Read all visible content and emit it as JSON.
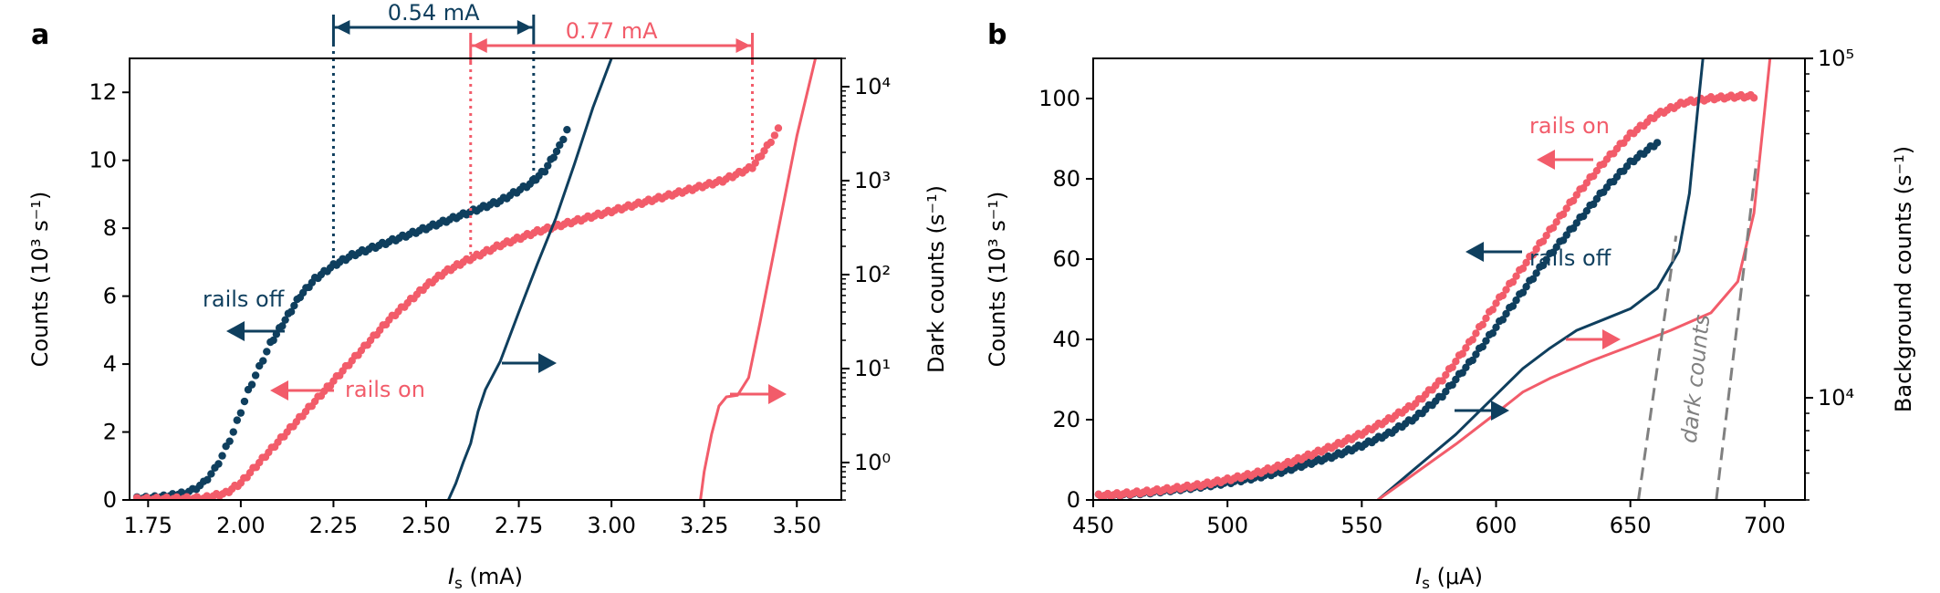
{
  "figure": {
    "panel_a_label": "a",
    "panel_b_label": "b"
  },
  "colors": {
    "rails_off": "#0f3f5e",
    "rails_on": "#f25c6a",
    "dark_counts": "#808080",
    "axis": "#000000"
  },
  "chart_data": [
    {
      "panel": "a",
      "type": "scatter+line",
      "title": "",
      "xlabel_italic": "I",
      "xlabel_sub": "s",
      "xlabel_unit": " (mA)",
      "ylabel_left": "Counts (10³ s⁻¹)",
      "ylabel_right": "Dark counts (s⁻¹)",
      "xlim": [
        1.7,
        3.62
      ],
      "ylim_left": [
        0,
        13
      ],
      "ylim_right_log": [
        0.4,
        20000
      ],
      "x_ticks": [
        1.75,
        2.0,
        2.25,
        2.5,
        2.75,
        3.0,
        3.25,
        3.5
      ],
      "x_tick_labels": [
        "1.75",
        "2.00",
        "2.25",
        "2.50",
        "2.75",
        "3.00",
        "3.25",
        "3.50"
      ],
      "y_ticks_left": [
        0,
        2,
        4,
        6,
        8,
        10,
        12
      ],
      "y_tick_labels_left": [
        "0",
        "2",
        "4",
        "6",
        "8",
        "10",
        "12"
      ],
      "y_ticks_right": [
        1,
        10,
        100,
        1000,
        10000
      ],
      "y_tick_labels_right": [
        "10⁰",
        "10¹",
        "10²",
        "10³",
        "10⁴"
      ],
      "series": [
        {
          "name": "rails off",
          "kind": "counts",
          "axis": "left",
          "style": "dots",
          "color_key": "rails_off",
          "points": [
            [
              1.72,
              0.04
            ],
            [
              1.76,
              0.06
            ],
            [
              1.8,
              0.1
            ],
            [
              1.84,
              0.18
            ],
            [
              1.87,
              0.28
            ],
            [
              1.9,
              0.5
            ],
            [
              1.93,
              0.9
            ],
            [
              1.95,
              1.3
            ],
            [
              1.98,
              2.0
            ],
            [
              2.0,
              2.6
            ],
            [
              2.02,
              3.2
            ],
            [
              2.05,
              3.9
            ],
            [
              2.08,
              4.6
            ],
            [
              2.12,
              5.3
            ],
            [
              2.16,
              6.0
            ],
            [
              2.2,
              6.5
            ],
            [
              2.25,
              6.9
            ],
            [
              2.3,
              7.2
            ],
            [
              2.4,
              7.6
            ],
            [
              2.5,
              8.0
            ],
            [
              2.6,
              8.4
            ],
            [
              2.7,
              8.8
            ],
            [
              2.78,
              9.3
            ],
            [
              2.82,
              9.7
            ],
            [
              2.86,
              10.4
            ],
            [
              2.88,
              10.9
            ]
          ]
        },
        {
          "name": "rails on",
          "kind": "counts",
          "axis": "left",
          "style": "dots",
          "color_key": "rails_on",
          "points": [
            [
              1.72,
              0.02
            ],
            [
              1.8,
              0.03
            ],
            [
              1.9,
              0.05
            ],
            [
              1.96,
              0.2
            ],
            [
              2.0,
              0.5
            ],
            [
              2.05,
              1.1
            ],
            [
              2.1,
              1.7
            ],
            [
              2.15,
              2.3
            ],
            [
              2.2,
              2.9
            ],
            [
              2.25,
              3.5
            ],
            [
              2.3,
              4.1
            ],
            [
              2.35,
              4.7
            ],
            [
              2.4,
              5.3
            ],
            [
              2.45,
              5.8
            ],
            [
              2.5,
              6.3
            ],
            [
              2.55,
              6.7
            ],
            [
              2.6,
              7.0
            ],
            [
              2.7,
              7.5
            ],
            [
              2.8,
              7.9
            ],
            [
              2.9,
              8.2
            ],
            [
              3.0,
              8.5
            ],
            [
              3.1,
              8.8
            ],
            [
              3.2,
              9.1
            ],
            [
              3.3,
              9.4
            ],
            [
              3.38,
              9.8
            ],
            [
              3.42,
              10.4
            ],
            [
              3.45,
              10.9
            ]
          ]
        },
        {
          "name": "rails off dark counts",
          "kind": "dark",
          "axis": "right",
          "style": "line",
          "color_key": "rails_off",
          "points": [
            [
              2.56,
              0.4
            ],
            [
              2.58,
              0.6
            ],
            [
              2.6,
              1.0
            ],
            [
              2.62,
              1.6
            ],
            [
              2.64,
              3.5
            ],
            [
              2.66,
              6
            ],
            [
              2.7,
              12
            ],
            [
              2.75,
              40
            ],
            [
              2.8,
              130
            ],
            [
              2.85,
              400
            ],
            [
              2.9,
              1500
            ],
            [
              2.95,
              6000
            ],
            [
              3.0,
              20000
            ]
          ]
        },
        {
          "name": "rails on dark counts",
          "kind": "dark",
          "axis": "right",
          "style": "line",
          "color_key": "rails_on",
          "points": [
            [
              3.24,
              0.4
            ],
            [
              3.25,
              0.8
            ],
            [
              3.27,
              2.0
            ],
            [
              3.29,
              4.0
            ],
            [
              3.31,
              5.0
            ],
            [
              3.34,
              5.2
            ],
            [
              3.37,
              8
            ],
            [
              3.4,
              30
            ],
            [
              3.45,
              300
            ],
            [
              3.5,
              3000
            ],
            [
              3.55,
              20000
            ]
          ]
        }
      ],
      "annotations": {
        "width_off_label": "0.54 mA",
        "width_on_label": "0.77 mA",
        "width_off_range": [
          2.25,
          2.79
        ],
        "width_on_range": [
          2.62,
          3.38
        ],
        "rails_off_label": "rails off",
        "rails_on_label": "rails on"
      }
    },
    {
      "panel": "b",
      "type": "scatter+line",
      "title": "",
      "xlabel_italic": "I",
      "xlabel_sub": "s",
      "xlabel_unit": " (μA)",
      "ylabel_left": "Counts (10³ s⁻¹)",
      "ylabel_right": "Background counts (s⁻¹)",
      "xlim": [
        450,
        715
      ],
      "ylim_left": [
        0,
        110
      ],
      "ylim_right_log": [
        5000,
        100000
      ],
      "x_ticks": [
        450,
        500,
        550,
        600,
        650,
        700
      ],
      "x_tick_labels": [
        "450",
        "500",
        "550",
        "600",
        "650",
        "700"
      ],
      "y_ticks_left": [
        0,
        20,
        40,
        60,
        80,
        100
      ],
      "y_tick_labels_left": [
        "0",
        "20",
        "40",
        "60",
        "80",
        "100"
      ],
      "y_ticks_right": [
        10000,
        100000
      ],
      "y_tick_labels_right": [
        "10⁴",
        "10⁵"
      ],
      "series": [
        {
          "name": "rails off",
          "kind": "counts",
          "axis": "left",
          "style": "dots",
          "color_key": "rails_off",
          "points": [
            [
              452,
              1.0
            ],
            [
              460,
              1.3
            ],
            [
              470,
              1.8
            ],
            [
              480,
              2.5
            ],
            [
              490,
              3.3
            ],
            [
              500,
              4.3
            ],
            [
              510,
              5.5
            ],
            [
              520,
              7.0
            ],
            [
              530,
              9.0
            ],
            [
              540,
              11.0
            ],
            [
              550,
              13.5
            ],
            [
              560,
              16.5
            ],
            [
              570,
              20.5
            ],
            [
              580,
              26.0
            ],
            [
              590,
              34.0
            ],
            [
              600,
              43.0
            ],
            [
              610,
              52.0
            ],
            [
              620,
              61.0
            ],
            [
              630,
              69.0
            ],
            [
              640,
              77.0
            ],
            [
              650,
              84.0
            ],
            [
              660,
              89.0
            ]
          ]
        },
        {
          "name": "rails on",
          "kind": "counts",
          "axis": "left",
          "style": "dots",
          "color_key": "rails_on",
          "points": [
            [
              452,
              1.0
            ],
            [
              460,
              1.4
            ],
            [
              470,
              2.0
            ],
            [
              480,
              2.8
            ],
            [
              490,
              3.7
            ],
            [
              500,
              5.0
            ],
            [
              510,
              6.5
            ],
            [
              520,
              8.5
            ],
            [
              530,
              11.0
            ],
            [
              540,
              13.5
            ],
            [
              550,
              16.5
            ],
            [
              560,
              20.0
            ],
            [
              570,
              24.0
            ],
            [
              580,
              30.0
            ],
            [
              590,
              39.0
            ],
            [
              600,
              49.0
            ],
            [
              610,
              58.0
            ],
            [
              620,
              67.0
            ],
            [
              630,
              76.0
            ],
            [
              640,
              84.0
            ],
            [
              650,
              91.0
            ],
            [
              660,
              96.0
            ],
            [
              670,
              99.0
            ],
            [
              680,
              100.0
            ],
            [
              690,
              100.5
            ],
            [
              696,
              100.5
            ]
          ]
        },
        {
          "name": "rails off background",
          "kind": "background",
          "axis": "right",
          "style": "line",
          "color_key": "rails_off",
          "points": [
            [
              556,
              5000
            ],
            [
              570,
              6200
            ],
            [
              585,
              7800
            ],
            [
              600,
              10200
            ],
            [
              610,
              12200
            ],
            [
              620,
              14000
            ],
            [
              630,
              15800
            ],
            [
              640,
              17000
            ],
            [
              650,
              18300
            ],
            [
              660,
              21000
            ],
            [
              668,
              27000
            ],
            [
              672,
              40000
            ],
            [
              675,
              70000
            ],
            [
              677,
              100000
            ]
          ]
        },
        {
          "name": "rails on background",
          "kind": "background",
          "axis": "right",
          "style": "line",
          "color_key": "rails_on",
          "points": [
            [
              556,
              5000
            ],
            [
              570,
              6000
            ],
            [
              585,
              7300
            ],
            [
              600,
              9000
            ],
            [
              610,
              10400
            ],
            [
              620,
              11400
            ],
            [
              635,
              12800
            ],
            [
              650,
              14200
            ],
            [
              665,
              15800
            ],
            [
              680,
              17800
            ],
            [
              690,
              22000
            ],
            [
              696,
              35000
            ],
            [
              700,
              70000
            ],
            [
              702,
              100000
            ]
          ]
        },
        {
          "name": "dark counts",
          "kind": "fit",
          "axis": "right",
          "style": "dashed",
          "color_key": "dark_counts",
          "segments": [
            [
              [
                653,
                5000
              ],
              [
                667,
                30000
              ]
            ],
            [
              [
                682,
                5000
              ],
              [
                697,
                50000
              ]
            ]
          ]
        }
      ],
      "annotations": {
        "rails_on_label": "rails on",
        "rails_off_label": "rails off",
        "dark_counts_label": "dark counts"
      }
    }
  ]
}
